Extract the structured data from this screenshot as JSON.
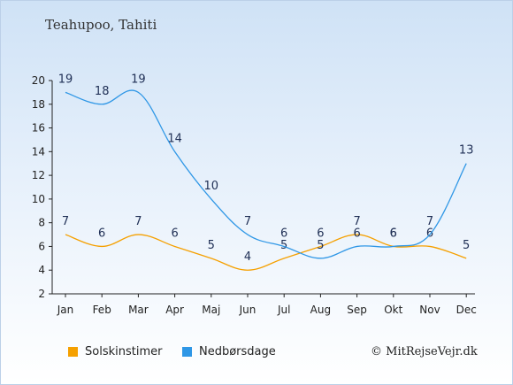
{
  "title": "Teahupoo, Tahiti",
  "copyright": "© MitRejseVejr.dk",
  "colors": {
    "sun": "#f5a000",
    "rain": "#2f97e6"
  },
  "legend": [
    {
      "label": "Solskinstimer",
      "color": "#f5a000"
    },
    {
      "label": "Nedbørsdage",
      "color": "#2f97e6"
    }
  ],
  "chart_data": {
    "type": "line",
    "categories": [
      "Jan",
      "Feb",
      "Mar",
      "Apr",
      "Maj",
      "Jun",
      "Jul",
      "Aug",
      "Sep",
      "Okt",
      "Nov",
      "Dec"
    ],
    "series": [
      {
        "name": "Solskinstimer",
        "color": "#f5a000",
        "values": [
          7,
          6,
          7,
          6,
          5,
          4,
          5,
          6,
          7,
          6,
          6,
          5
        ]
      },
      {
        "name": "Nedbørsdage",
        "color": "#2f97e6",
        "values": [
          19,
          18,
          19,
          14,
          10,
          7,
          6,
          5,
          6,
          6,
          7,
          13
        ]
      }
    ],
    "ylim": [
      2,
      20
    ],
    "yticks": [
      2,
      4,
      6,
      8,
      10,
      12,
      14,
      16,
      18,
      20
    ],
    "grid": false,
    "legend_position": "bottom"
  }
}
